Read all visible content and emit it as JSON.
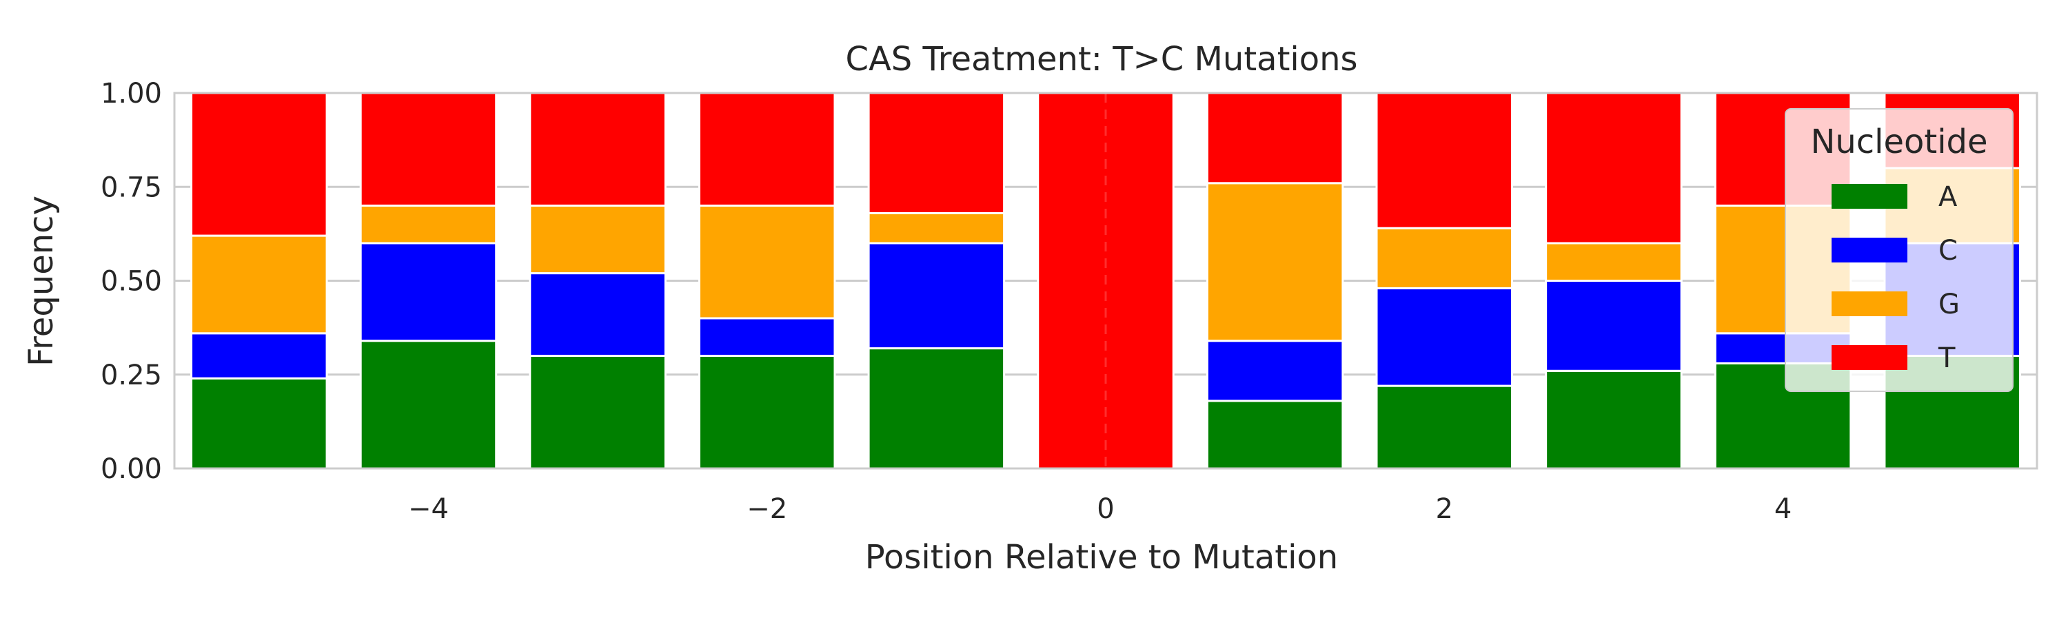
{
  "chart_data": {
    "type": "bar",
    "stacked": true,
    "title": "CAS Treatment: T>C Mutations",
    "xlabel": "Position Relative to Mutation",
    "ylabel": "Frequency",
    "x": [
      -5,
      -4,
      -3,
      -2,
      -1,
      0,
      1,
      2,
      3,
      4,
      5
    ],
    "xlim": [
      -5.5,
      5.5
    ],
    "ylim": [
      0,
      1
    ],
    "xticks": [
      -4,
      -2,
      0,
      2,
      4
    ],
    "xtick_labels": [
      "−4",
      "−2",
      "0",
      "2",
      "4"
    ],
    "yticks": [
      0,
      0.25,
      0.5,
      0.75,
      1.0
    ],
    "ytick_labels": [
      "0.00",
      "0.25",
      "0.50",
      "0.75",
      "1.00"
    ],
    "grid": true,
    "reference_line": {
      "x": 0,
      "style": "dashed"
    },
    "series": [
      {
        "name": "A",
        "color": "#008000",
        "values": [
          0.24,
          0.34,
          0.3,
          0.3,
          0.32,
          0.0,
          0.18,
          0.22,
          0.26,
          0.28,
          0.3
        ]
      },
      {
        "name": "C",
        "color": "#0000ff",
        "values": [
          0.12,
          0.26,
          0.22,
          0.1,
          0.28,
          0.0,
          0.16,
          0.26,
          0.24,
          0.08,
          0.3
        ]
      },
      {
        "name": "G",
        "color": "#ffa500",
        "values": [
          0.26,
          0.1,
          0.18,
          0.3,
          0.08,
          0.0,
          0.42,
          0.16,
          0.1,
          0.34,
          0.2
        ]
      },
      {
        "name": "T",
        "color": "#ff0000",
        "values": [
          0.38,
          0.3,
          0.3,
          0.3,
          0.32,
          1.0,
          0.24,
          0.36,
          0.4,
          0.3,
          0.2
        ]
      }
    ],
    "legend": {
      "title": "Nucleotide",
      "position": "upper-right"
    }
  }
}
